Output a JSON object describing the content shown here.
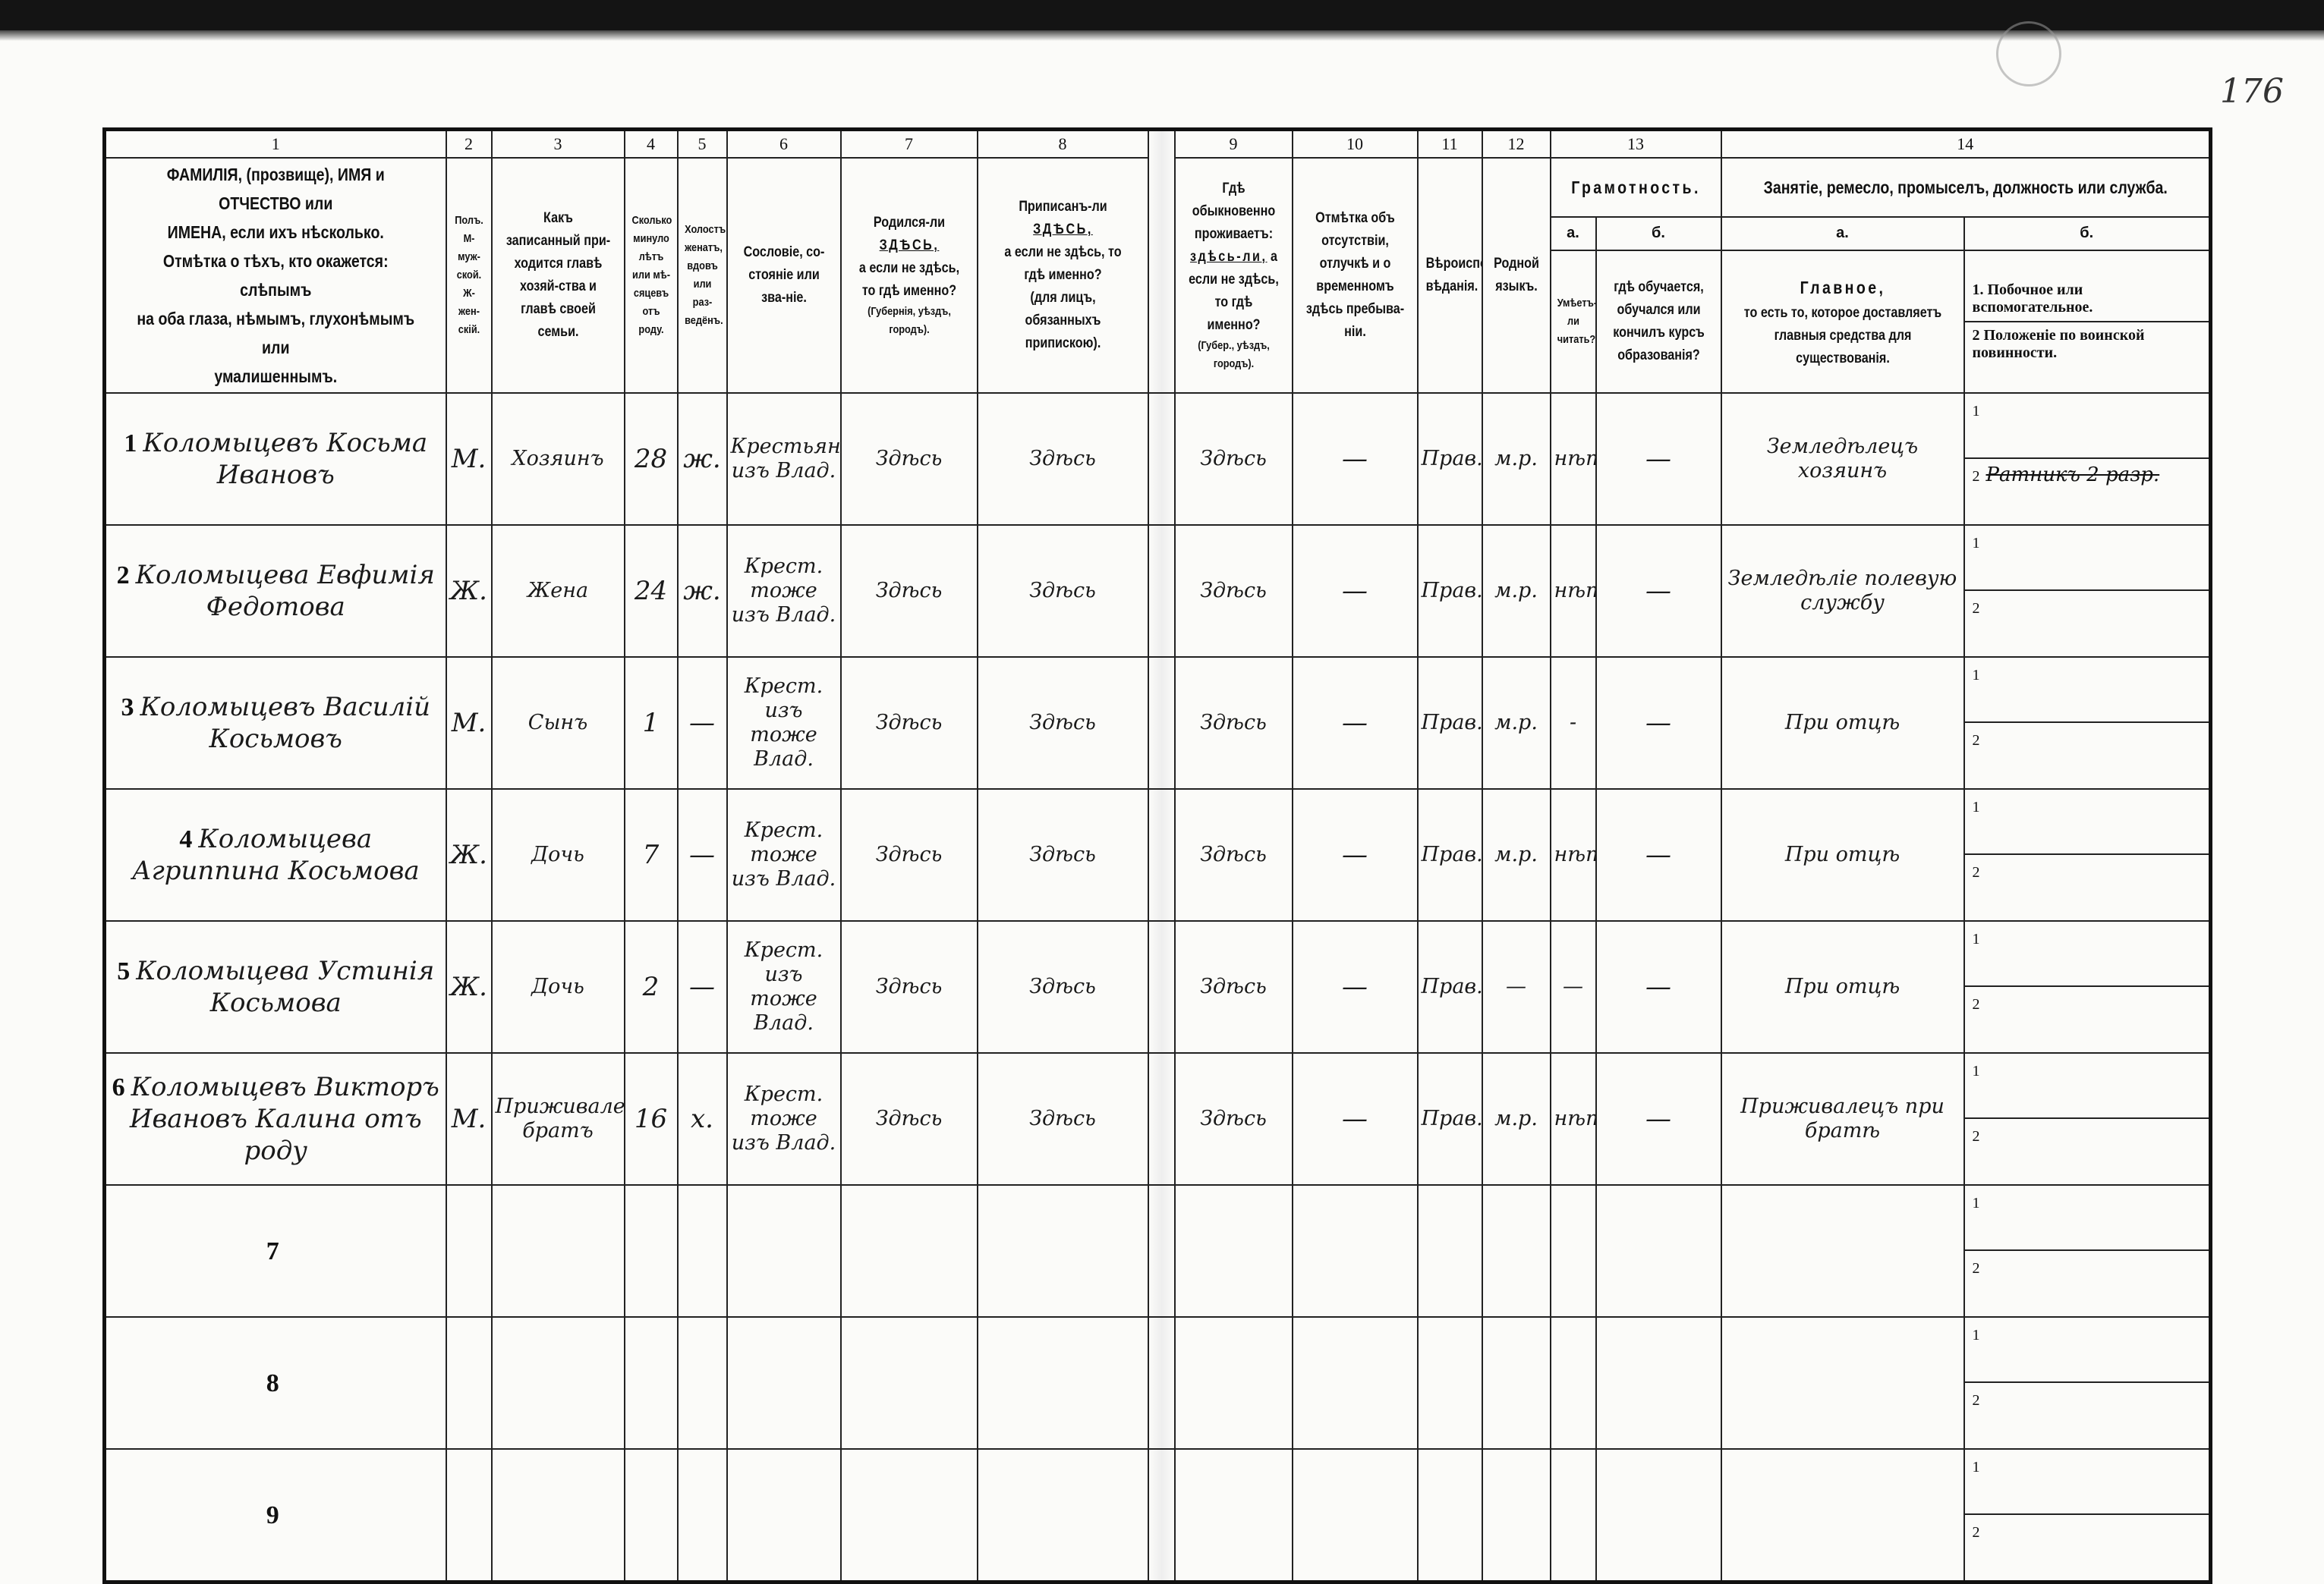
{
  "page_number": "176",
  "column_numbers": [
    "1",
    "2",
    "3",
    "4",
    "5",
    "6",
    "7",
    "8",
    "9",
    "10",
    "11",
    "12",
    "13",
    "14"
  ],
  "headers": {
    "c1": [
      "ФАМИЛІЯ, (прозвище), ИМЯ и ОТЧЕСТВО или",
      "ИМЕНА, если ихъ нѣсколько.",
      "Отмѣтка о тѣхъ, кто окажется: слѣпымъ",
      "на оба глаза, нѣмымъ, глухонѣмымъ или",
      "умалишеннымъ."
    ],
    "c2": [
      "Полъ.",
      "М-муж-ской.",
      "Ж-жен-скій."
    ],
    "c3": "Какъ записанный при-ходится главѣ хозяй-ства и главѣ своей семьи.",
    "c4": "Сколько минуло лѣтъ или мѣ-сяцевъ отъ роду.",
    "c5": "Холостъ, женатъ, вдовъ или раз-ведёнъ.",
    "c6": "Сословіе, со-стояніе или зва-ніе.",
    "c7": {
      "pre": "Родился-ли",
      "here": "ЗДѢСЬ,",
      "rest": "а если не здѣсь, то гдѣ именно?",
      "note": "(Губернія, уѣздъ, городъ)."
    },
    "c8": {
      "pre": "Приписанъ-ли",
      "here": "ЗДѢСЬ,",
      "rest": "а если не здѣсь, то гдѣ именно?",
      "note": "(для лицъ, обязанныхъ припискою)."
    },
    "c9": {
      "pre": "Гдѣ обыкновенно проживаетъ:",
      "here": "здѣсь-ли,",
      "rest": "а если не здѣсь, то гдѣ именно?",
      "note": "(Губер., уѣздъ, городъ)."
    },
    "c10": "Отмѣтка объ отсутствіи, отлучкѣ и о временномъ здѣсь пребыва-ніи.",
    "c11": "Вѣроиспо-вѣданія.",
    "c12": "Родной языкъ.",
    "c13": {
      "title": "Грамотность.",
      "a_label": "а.",
      "b_label": "б.",
      "a": "Умѣетъ-ли читать?",
      "b": "гдѣ обучается, обучался или кончилъ курсъ образованія?"
    },
    "c14": {
      "title": "Занятіе, ремесло, промыселъ, должность или служба.",
      "a_label": "а.",
      "b_label": "б.",
      "a_title": "Главное,",
      "a": "то есть то, которое доставляетъ главныя средства для существованія.",
      "b1": "1. Побочное или вспомогательное.",
      "b2": "2 Положеніе по воинской повинности."
    }
  },
  "sub_line_labels": [
    "1",
    "2"
  ],
  "rows": [
    {
      "n": "1",
      "name": "Коломыцевъ Косьма Ивановъ",
      "sex": "М.",
      "relation": "Хозяинъ",
      "age": "28",
      "marital": "ж.",
      "estate": "Крестьянинъ изъ Влад.",
      "born": "Здѣсь",
      "registered": "Здѣсь",
      "resides": "Здѣсь",
      "absence": "—",
      "religion": "Прав.",
      "language": "м.р.",
      "literate": "нѣтъ",
      "education": "—",
      "occupation": "Земледѣлецъ хозяинъ",
      "occ_b1": "",
      "occ_b2": "Ратникъ 2 разр."
    },
    {
      "n": "2",
      "name": "Коломыцева Евфимія Федотова",
      "sex": "Ж.",
      "relation": "Жена",
      "age": "24",
      "marital": "ж.",
      "estate": "Крест. тоже изъ Влад.",
      "born": "Здѣсь",
      "registered": "Здѣсь",
      "resides": "Здѣсь",
      "absence": "—",
      "religion": "Прав.",
      "language": "м.р.",
      "literate": "нѣтъ",
      "education": "—",
      "occupation": "Земледѣліе полевую службу",
      "occ_b1": "",
      "occ_b2": ""
    },
    {
      "n": "3",
      "name": "Коломыцевъ Василій Косьмовъ",
      "sex": "М.",
      "relation": "Сынъ",
      "age": "1",
      "marital": "—",
      "estate": "Крест. изъ тоже Влад.",
      "born": "Здѣсь",
      "registered": "Здѣсь",
      "resides": "Здѣсь",
      "absence": "—",
      "religion": "Прав.",
      "language": "м.р.",
      "literate": "-",
      "education": "—",
      "occupation": "При отцѣ",
      "occ_b1": "",
      "occ_b2": ""
    },
    {
      "n": "4",
      "name": "Коломыцева Агриппина Косьмова",
      "sex": "Ж.",
      "relation": "Дочь",
      "age": "7",
      "marital": "—",
      "estate": "Крест. тоже изъ Влад.",
      "born": "Здѣсь",
      "registered": "Здѣсь",
      "resides": "Здѣсь",
      "absence": "—",
      "religion": "Прав.",
      "language": "м.р.",
      "literate": "нѣтъ",
      "education": "—",
      "occupation": "При отцѣ",
      "occ_b1": "",
      "occ_b2": ""
    },
    {
      "n": "5",
      "name": "Коломыцева Устинія Косьмова",
      "sex": "Ж.",
      "relation": "Дочь",
      "age": "2",
      "marital": "—",
      "estate": "Крест. изъ тоже Влад.",
      "born": "Здѣсь",
      "registered": "Здѣсь",
      "resides": "Здѣсь",
      "absence": "—",
      "religion": "Прав.",
      "language": "—",
      "literate": "—",
      "education": "—",
      "occupation": "При отцѣ",
      "occ_b1": "",
      "occ_b2": ""
    },
    {
      "n": "6",
      "name": "Коломыцевъ Викторъ Ивановъ Калина отъ роду",
      "sex": "М.",
      "relation": "Приживалецъ братъ",
      "age": "16",
      "marital": "х.",
      "estate": "Крест. тоже изъ Влад.",
      "born": "Здѣсь",
      "registered": "Здѣсь",
      "resides": "Здѣсь",
      "absence": "—",
      "religion": "Прав.",
      "language": "м.р.",
      "literate": "нѣтъ",
      "education": "—",
      "occupation": "Приживалецъ при братѣ",
      "occ_b1": "",
      "occ_b2": ""
    },
    {
      "n": "7"
    },
    {
      "n": "8"
    },
    {
      "n": "9"
    }
  ]
}
